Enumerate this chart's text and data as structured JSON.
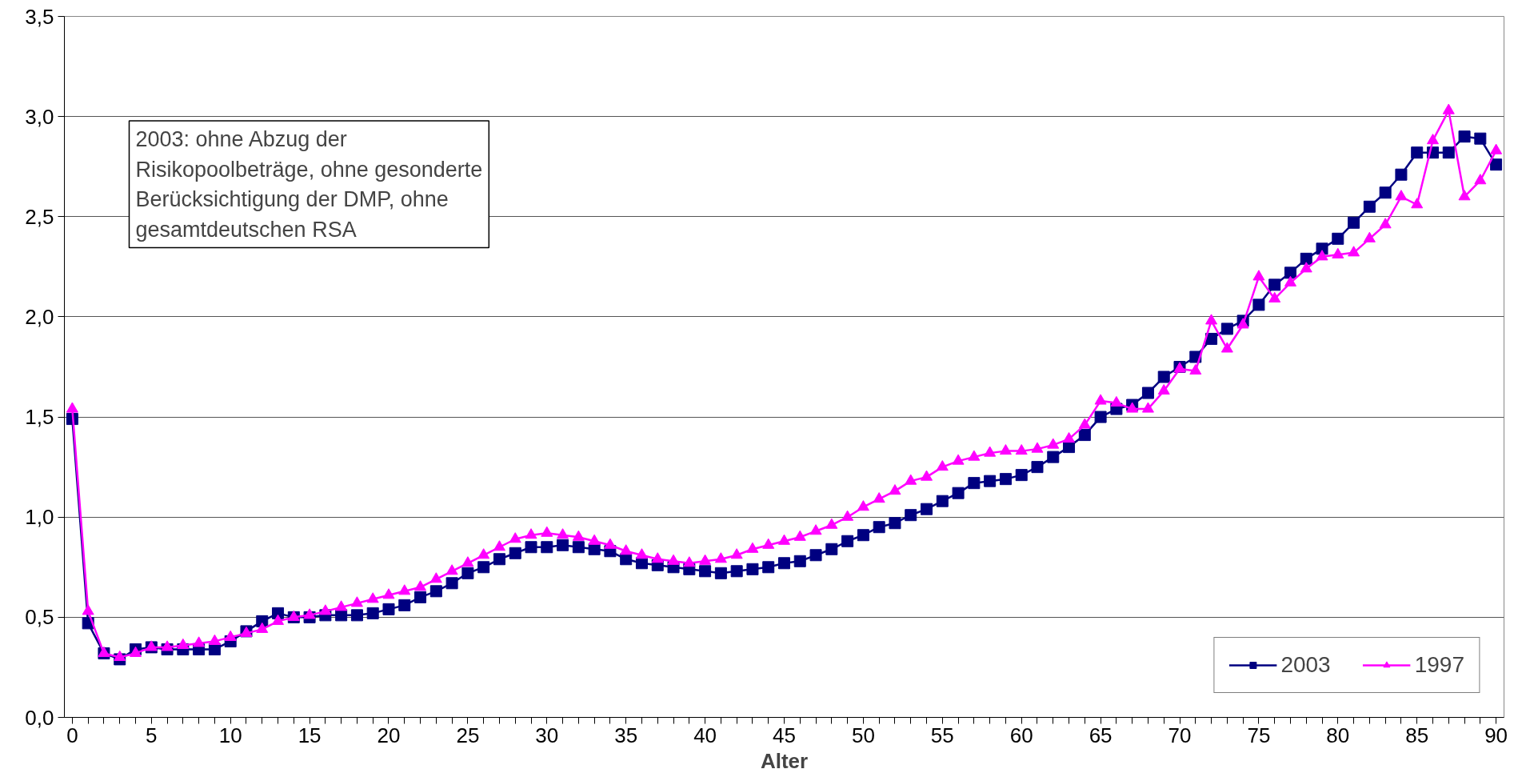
{
  "chart_data": {
    "type": "line",
    "xlabel": "Alter",
    "annotations": [
      "2003: ohne Abzug der\nRisikopoolbeträge, ohne gesonderte\nBerücksichtigung der DMP, ohne\ngesamtdeutschen RSA"
    ],
    "x": [
      0,
      1,
      2,
      3,
      4,
      5,
      6,
      7,
      8,
      9,
      10,
      11,
      12,
      13,
      14,
      15,
      16,
      17,
      18,
      19,
      20,
      21,
      22,
      23,
      24,
      25,
      26,
      27,
      28,
      29,
      30,
      31,
      32,
      33,
      34,
      35,
      36,
      37,
      38,
      39,
      40,
      41,
      42,
      43,
      44,
      45,
      46,
      47,
      48,
      49,
      50,
      51,
      52,
      53,
      54,
      55,
      56,
      57,
      58,
      59,
      60,
      61,
      62,
      63,
      64,
      65,
      66,
      67,
      68,
      69,
      70,
      71,
      72,
      73,
      74,
      75,
      76,
      77,
      78,
      79,
      80,
      81,
      82,
      83,
      84,
      85,
      86,
      87,
      88,
      89,
      90
    ],
    "series": [
      {
        "name": "2003",
        "color": "#000080",
        "marker": "square",
        "values": [
          1.49,
          0.47,
          0.32,
          0.29,
          0.34,
          0.35,
          0.34,
          0.34,
          0.34,
          0.34,
          0.38,
          0.43,
          0.48,
          0.52,
          0.5,
          0.5,
          0.51,
          0.51,
          0.51,
          0.52,
          0.54,
          0.56,
          0.6,
          0.63,
          0.67,
          0.72,
          0.75,
          0.79,
          0.82,
          0.85,
          0.85,
          0.86,
          0.85,
          0.84,
          0.83,
          0.79,
          0.77,
          0.76,
          0.75,
          0.74,
          0.73,
          0.72,
          0.73,
          0.74,
          0.75,
          0.77,
          0.78,
          0.81,
          0.84,
          0.88,
          0.91,
          0.95,
          0.97,
          1.01,
          1.04,
          1.08,
          1.12,
          1.17,
          1.18,
          1.19,
          1.21,
          1.25,
          1.3,
          1.35,
          1.41,
          1.5,
          1.54,
          1.56,
          1.62,
          1.7,
          1.75,
          1.8,
          1.89,
          1.94,
          1.98,
          2.06,
          2.16,
          2.22,
          2.29,
          2.34,
          2.39,
          2.47,
          2.55,
          2.62,
          2.71,
          2.82,
          2.82,
          2.82,
          2.9,
          2.89,
          2.76
        ]
      },
      {
        "name": "1997",
        "color": "#ff00ff",
        "marker": "triangle",
        "values": [
          1.54,
          0.53,
          0.32,
          0.3,
          0.32,
          0.35,
          0.35,
          0.36,
          0.37,
          0.38,
          0.4,
          0.42,
          0.44,
          0.48,
          0.5,
          0.51,
          0.53,
          0.55,
          0.57,
          0.59,
          0.61,
          0.63,
          0.65,
          0.69,
          0.73,
          0.77,
          0.81,
          0.85,
          0.89,
          0.91,
          0.92,
          0.91,
          0.9,
          0.88,
          0.86,
          0.83,
          0.81,
          0.79,
          0.78,
          0.77,
          0.78,
          0.79,
          0.81,
          0.84,
          0.86,
          0.88,
          0.9,
          0.93,
          0.96,
          1.0,
          1.05,
          1.09,
          1.13,
          1.18,
          1.2,
          1.25,
          1.28,
          1.3,
          1.32,
          1.33,
          1.33,
          1.34,
          1.36,
          1.39,
          1.46,
          1.58,
          1.57,
          1.54,
          1.54,
          1.63,
          1.74,
          1.73,
          1.98,
          1.84,
          1.96,
          2.2,
          2.09,
          2.17,
          2.24,
          2.3,
          2.31,
          2.32,
          2.39,
          2.46,
          2.6,
          2.56,
          2.88,
          3.03,
          2.6,
          2.68,
          2.83
        ]
      }
    ],
    "xlim": [
      -0.5,
      90.5
    ],
    "ylim": [
      0,
      3.5
    ],
    "xticks": [
      0,
      {
        "value": 1,
        "label": null
      },
      {
        "value": 2,
        "label": null
      },
      {
        "value": 3,
        "label": null
      },
      {
        "value": 4,
        "label": null
      },
      5,
      {
        "value": 6,
        "label": null
      },
      {
        "value": 7,
        "label": null
      },
      {
        "value": 8,
        "label": null
      },
      {
        "value": 9,
        "label": null
      },
      10,
      {
        "value": 11,
        "label": null
      },
      {
        "value": 12,
        "label": null
      },
      {
        "value": 13,
        "label": null
      },
      {
        "value": 14,
        "label": null
      },
      15,
      {
        "value": 16,
        "label": null
      },
      {
        "value": 17,
        "label": null
      },
      {
        "value": 18,
        "label": null
      },
      {
        "value": 19,
        "label": null
      },
      20,
      {
        "value": 21,
        "label": null
      },
      {
        "value": 22,
        "label": null
      },
      {
        "value": 23,
        "label": null
      },
      {
        "value": 24,
        "label": null
      },
      25,
      {
        "value": 26,
        "label": null
      },
      {
        "value": 27,
        "label": null
      },
      {
        "value": 28,
        "label": null
      },
      {
        "value": 29,
        "label": null
      },
      30,
      {
        "value": 31,
        "label": null
      },
      {
        "value": 32,
        "label": null
      },
      {
        "value": 33,
        "label": null
      },
      {
        "value": 34,
        "label": null
      },
      35,
      {
        "value": 36,
        "label": null
      },
      {
        "value": 37,
        "label": null
      },
      {
        "value": 38,
        "label": null
      },
      {
        "value": 39,
        "label": null
      },
      40,
      {
        "value": 41,
        "label": null
      },
      {
        "value": 42,
        "label": null
      },
      {
        "value": 43,
        "label": null
      },
      {
        "value": 44,
        "label": null
      },
      45,
      {
        "value": 46,
        "label": null
      },
      {
        "value": 47,
        "label": null
      },
      {
        "value": 48,
        "label": null
      },
      {
        "value": 49,
        "label": null
      },
      50,
      {
        "value": 51,
        "label": null
      },
      {
        "value": 52,
        "label": null
      },
      {
        "value": 53,
        "label": null
      },
      {
        "value": 54,
        "label": null
      },
      55,
      {
        "value": 56,
        "label": null
      },
      {
        "value": 57,
        "label": null
      },
      {
        "value": 58,
        "label": null
      },
      {
        "value": 59,
        "label": null
      },
      60,
      {
        "value": 61,
        "label": null
      },
      {
        "value": 62,
        "label": null
      },
      {
        "value": 63,
        "label": null
      },
      {
        "value": 64,
        "label": null
      },
      65,
      {
        "value": 66,
        "label": null
      },
      {
        "value": 67,
        "label": null
      },
      {
        "value": 68,
        "label": null
      },
      {
        "value": 69,
        "label": null
      },
      70,
      {
        "value": 71,
        "label": null
      },
      {
        "value": 72,
        "label": null
      },
      {
        "value": 73,
        "label": null
      },
      {
        "value": 74,
        "label": null
      },
      75,
      {
        "value": 76,
        "label": null
      },
      {
        "value": 77,
        "label": null
      },
      {
        "value": 78,
        "label": null
      },
      {
        "value": 79,
        "label": null
      },
      80,
      {
        "value": 81,
        "label": null
      },
      {
        "value": 82,
        "label": null
      },
      {
        "value": 83,
        "label": null
      },
      {
        "value": 84,
        "label": null
      },
      85,
      {
        "value": 86,
        "label": null
      },
      {
        "value": 87,
        "label": null
      },
      {
        "value": 88,
        "label": null
      },
      {
        "value": 89,
        "label": null
      },
      90
    ],
    "yticks": [
      {
        "value": 0,
        "label": "0,0"
      },
      {
        "value": 0.5,
        "label": "0,5"
      },
      {
        "value": 1,
        "label": "1,0"
      },
      {
        "value": 1.5,
        "label": "1,5"
      },
      {
        "value": 2,
        "label": "2,0"
      },
      {
        "value": 2.5,
        "label": "2,5"
      },
      {
        "value": 3,
        "label": "3,0"
      },
      {
        "value": 3.5,
        "label": "3,5"
      }
    ],
    "grid": "y",
    "legend": "bottom right",
    "line_style": "solid"
  }
}
